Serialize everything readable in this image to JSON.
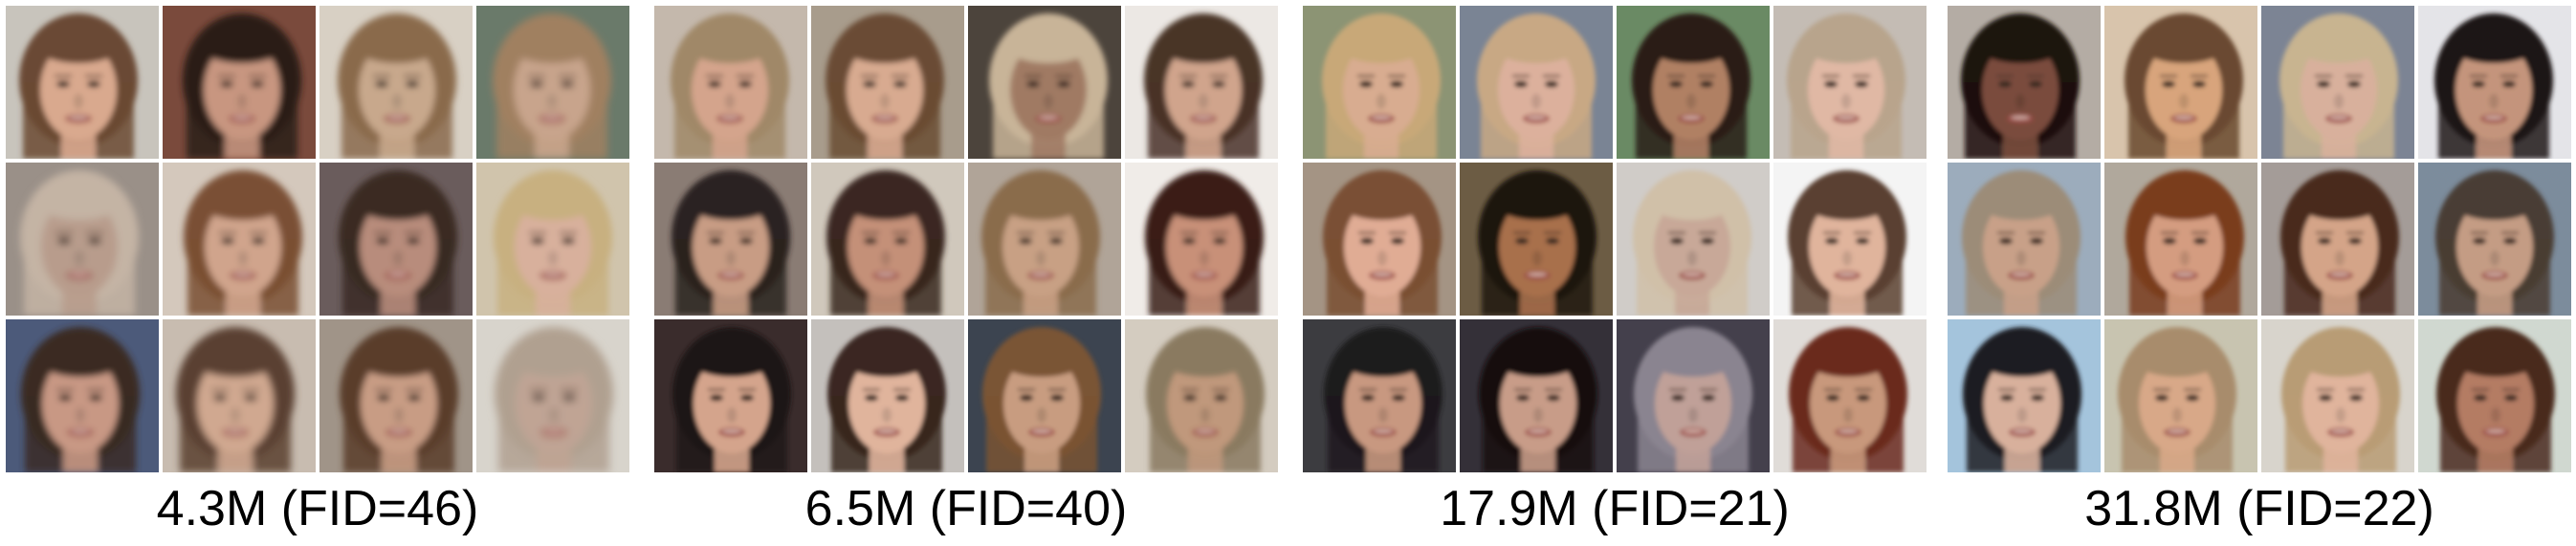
{
  "panels": [
    {
      "caption": "4.3M (FID=46)",
      "faces": [
        {
          "bg": "#c8c4bc",
          "skin": "#d9a98e",
          "hair": "#6b4a34",
          "blur": 3.0
        },
        {
          "bg": "#7a4a3c",
          "skin": "#c89680",
          "hair": "#2a1c18",
          "blur": 3.5
        },
        {
          "bg": "#d8d0c4",
          "skin": "#c8a88c",
          "hair": "#8a6a4c",
          "blur": 3.5
        },
        {
          "bg": "#6a7a6a",
          "skin": "#c8a48c",
          "hair": "#a08060",
          "blur": 4.0
        },
        {
          "bg": "#9a9088",
          "skin": "#b89c8c",
          "hair": "#c4b4a4",
          "blur": 4.0
        },
        {
          "bg": "#d4c8bc",
          "skin": "#d0a48c",
          "hair": "#7a5034",
          "blur": 3.5
        },
        {
          "bg": "#6a5c5c",
          "skin": "#b88c7c",
          "hair": "#3a2a24",
          "blur": 3.5
        },
        {
          "bg": "#d0c4ac",
          "skin": "#d8b09c",
          "hair": "#c8b080",
          "blur": 3.5
        },
        {
          "bg": "#4c5a7a",
          "skin": "#c89884",
          "hair": "#3a2a24",
          "blur": 3.5
        },
        {
          "bg": "#c8bcb0",
          "skin": "#d0a890",
          "hair": "#5a4030",
          "blur": 4.0
        },
        {
          "bg": "#a09488",
          "skin": "#c89c84",
          "hair": "#5a3c2c",
          "blur": 3.5
        },
        {
          "bg": "#d8d4cc",
          "skin": "#c0a494",
          "hair": "#b0a090",
          "blur": 4.5
        }
      ]
    },
    {
      "caption": "6.5M (FID=40)",
      "faces": [
        {
          "bg": "#c4b8ac",
          "skin": "#d4a48c",
          "hair": "#a08868",
          "blur": 3.0
        },
        {
          "bg": "#a89c8c",
          "skin": "#d8aa90",
          "hair": "#6a4c34",
          "blur": 3.0
        },
        {
          "bg": "#4c443c",
          "skin": "#a07a64",
          "hair": "#c8b498",
          "blur": 3.0
        },
        {
          "bg": "#ece8e4",
          "skin": "#d0a48c",
          "hair": "#4a3428",
          "blur": 3.0
        },
        {
          "bg": "#8a7c74",
          "skin": "#c89c84",
          "hair": "#2a2420",
          "blur": 3.0
        },
        {
          "bg": "#d0c8bc",
          "skin": "#c49078",
          "hair": "#3a2820",
          "blur": 3.0
        },
        {
          "bg": "#b0a498",
          "skin": "#c8a084",
          "hair": "#8a6c4c",
          "blur": 3.0
        },
        {
          "bg": "#f0ece8",
          "skin": "#c89078",
          "hair": "#3a1c14",
          "blur": 3.0
        },
        {
          "bg": "#3a2c2c",
          "skin": "#d4a48c",
          "hair": "#1c1614",
          "blur": 2.5
        },
        {
          "bg": "#c4c0bc",
          "skin": "#e0b49c",
          "hair": "#3a2820",
          "blur": 2.5
        },
        {
          "bg": "#3c4450",
          "skin": "#c89c80",
          "hair": "#7a5434",
          "blur": 2.5
        },
        {
          "bg": "#d4ccc0",
          "skin": "#c0987c",
          "hair": "#8a7a60",
          "blur": 3.0
        }
      ]
    },
    {
      "caption": "17.9M (FID=21)",
      "faces": [
        {
          "bg": "#8c9474",
          "skin": "#d8ac90",
          "hair": "#c8a878",
          "blur": 2.5
        },
        {
          "bg": "#7a8494",
          "skin": "#dcb09c",
          "hair": "#c8a884",
          "blur": 2.5
        },
        {
          "bg": "#6a8a64",
          "skin": "#b08064",
          "hair": "#2a1c18",
          "blur": 2.5
        },
        {
          "bg": "#c4bcb4",
          "skin": "#e0b8a4",
          "hair": "#b8a48c",
          "blur": 2.5
        },
        {
          "bg": "#a49484",
          "skin": "#e0ac94",
          "hair": "#7a5034",
          "blur": 2.5
        },
        {
          "bg": "#6c5c44",
          "skin": "#a8704c",
          "hair": "#1c1410",
          "blur": 2.5
        },
        {
          "bg": "#d0ccc8",
          "skin": "#c8a898",
          "hair": "#d0c0a8",
          "blur": 2.5
        },
        {
          "bg": "#f4f4f4",
          "skin": "#e0b49c",
          "hair": "#5a4030",
          "blur": 2.5
        },
        {
          "bg": "#3c3c40",
          "skin": "#c89880",
          "hair": "#1c1a1c",
          "blur": 2.5
        },
        {
          "bg": "#343038",
          "skin": "#c89c88",
          "hair": "#140e0e",
          "blur": 2.5
        },
        {
          "bg": "#44404c",
          "skin": "#c0a098",
          "hair": "#8a8490",
          "blur": 2.5
        },
        {
          "bg": "#e0dcd8",
          "skin": "#c8987c",
          "hair": "#6a2c1c",
          "blur": 2.5
        }
      ]
    },
    {
      "caption": "31.8M (FID=22)",
      "faces": [
        {
          "bg": "#b4aca4",
          "skin": "#7a4c3c",
          "hair": "#1c1210",
          "blur": 2.5
        },
        {
          "bg": "#d8c4ac",
          "skin": "#d8a47c",
          "hair": "#6a4a30",
          "blur": 2.5
        },
        {
          "bg": "#7c8494",
          "skin": "#d8b09c",
          "hair": "#c8b490",
          "blur": 2.5
        },
        {
          "bg": "#e4e4e8",
          "skin": "#c4947c",
          "hair": "#1c1618",
          "blur": 2.5
        },
        {
          "bg": "#9cacbc",
          "skin": "#c8a088",
          "hair": "#9c8c78",
          "blur": 2.5
        },
        {
          "bg": "#b0a89c",
          "skin": "#d49c80",
          "hair": "#7a3c1c",
          "blur": 2.5
        },
        {
          "bg": "#a49c98",
          "skin": "#d4a488",
          "hair": "#4a2c1c",
          "blur": 2.5
        },
        {
          "bg": "#7c8c9c",
          "skin": "#c49c84",
          "hair": "#4a3c34",
          "blur": 2.5
        },
        {
          "bg": "#a4c4dc",
          "skin": "#d8b09c",
          "hair": "#1c1c24",
          "blur": 2.5
        },
        {
          "bg": "#c8c4b0",
          "skin": "#d8a888",
          "hair": "#a88c6c",
          "blur": 2.5
        },
        {
          "bg": "#d8d4cc",
          "skin": "#e0b49c",
          "hair": "#b89c74",
          "blur": 2.5
        },
        {
          "bg": "#d0d8d0",
          "skin": "#b47c64",
          "hair": "#4a2c1c",
          "blur": 2.5
        }
      ]
    }
  ]
}
